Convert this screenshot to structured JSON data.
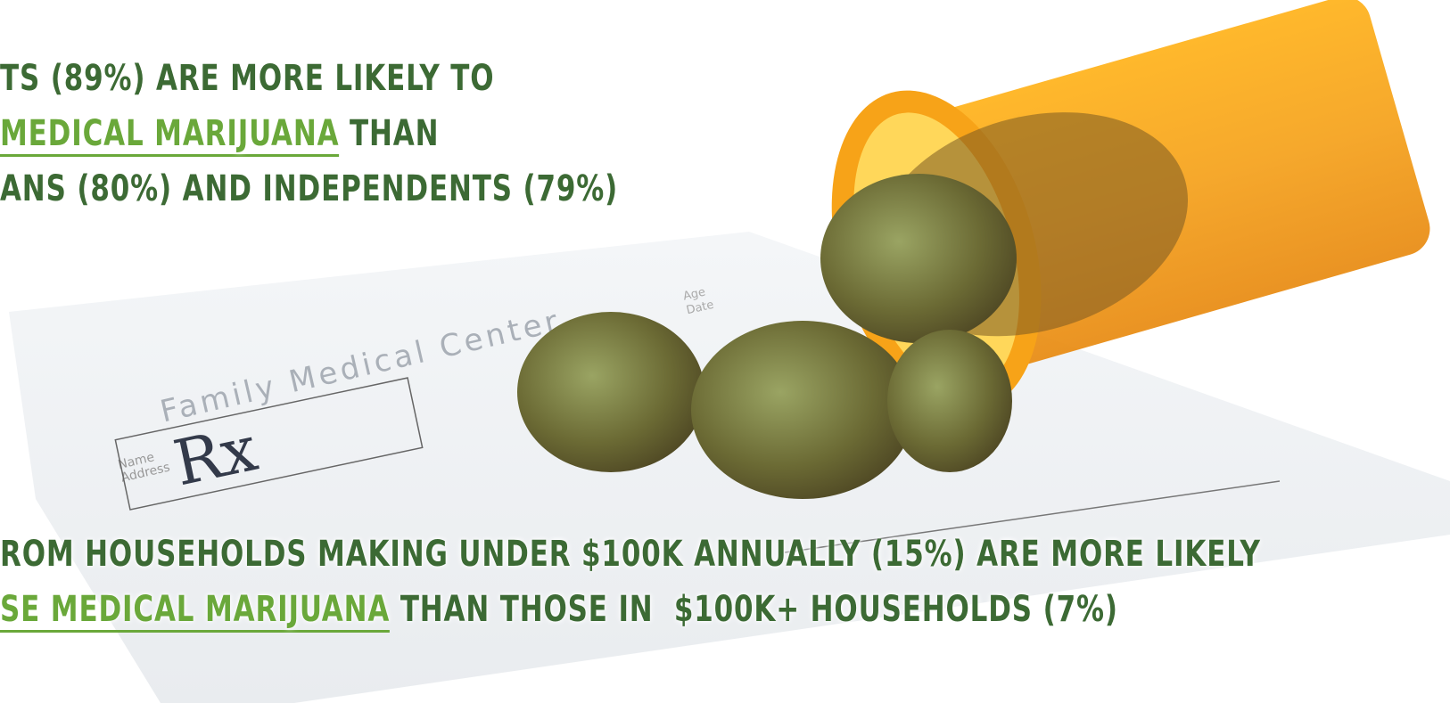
{
  "statements": [
    {
      "lead": "TS (89%) ARE MORE LIKELY TO",
      "link": "MEDICAL MARIJUANA",
      "tail": "THAN",
      "last": "ANS (80%) AND INDEPENDENTS (79%)"
    },
    {
      "lead": "ROM HOUSEHOLDS MAKING UNDER $100K ANNUALLY (15%) ARE MORE LIKELY",
      "link": "SE MEDICAL MARIJUANA",
      "tail": "THAN THOSE IN  $100K+ HOUSEHOLDS (7%)"
    }
  ],
  "prescription": {
    "heading": "Family Medical Center",
    "name": "Name",
    "address": "Address",
    "symbol": "Rx",
    "age": "Age",
    "date": "Date"
  }
}
